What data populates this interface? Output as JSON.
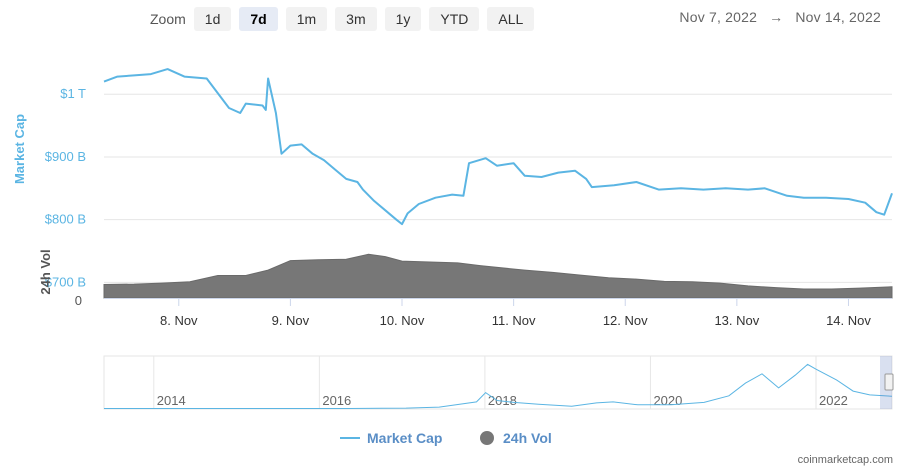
{
  "zoom": {
    "label": "Zoom",
    "buttons": [
      "1d",
      "7d",
      "1m",
      "3m",
      "1y",
      "YTD",
      "ALL"
    ],
    "active": "7d"
  },
  "date_range": {
    "from": "Nov 7, 2022",
    "arrow": "→",
    "to": "Nov 14, 2022"
  },
  "credit": "coinmarketcap.com",
  "colors": {
    "market_cap": "#5bb5e3",
    "volume": "#777777"
  },
  "chart_data": {
    "type": "line",
    "ylabel": "Market Cap",
    "y_ticks": [
      "$700 B",
      "$800 B",
      "$900 B",
      "$1 T"
    ],
    "y_tick_values": [
      700,
      800,
      900,
      1000
    ],
    "ylim": [
      672,
      1080
    ],
    "vol_label": "24h Vol",
    "vol_tick": "0",
    "x_ticks": [
      "8. Nov",
      "9. Nov",
      "10. Nov",
      "11. Nov",
      "12. Nov",
      "13. Nov",
      "14. Nov"
    ],
    "x_tick_days": [
      8,
      9,
      10,
      11,
      12,
      13,
      14
    ],
    "xlim_days": [
      7.33,
      14.39
    ],
    "series": [
      {
        "name": "Market Cap",
        "unit": "billion USD",
        "x_days": [
          7.33,
          7.45,
          7.6,
          7.75,
          7.9,
          8.05,
          8.25,
          8.45,
          8.55,
          8.6,
          8.75,
          8.78,
          8.8,
          8.87,
          8.92,
          9.0,
          9.1,
          9.2,
          9.3,
          9.4,
          9.5,
          9.6,
          9.65,
          9.75,
          9.85,
          9.95,
          10.0,
          10.05,
          10.15,
          10.3,
          10.45,
          10.55,
          10.6,
          10.75,
          10.85,
          11.0,
          11.1,
          11.25,
          11.4,
          11.55,
          11.65,
          11.7,
          11.9,
          12.1,
          12.3,
          12.5,
          12.7,
          12.9,
          13.1,
          13.25,
          13.45,
          13.6,
          13.8,
          14.0,
          14.15,
          14.25,
          14.32,
          14.39
        ],
        "values": [
          1020,
          1028,
          1030,
          1032,
          1040,
          1028,
          1025,
          978,
          970,
          985,
          982,
          975,
          1025,
          970,
          905,
          918,
          920,
          905,
          895,
          880,
          865,
          860,
          848,
          830,
          815,
          800,
          793,
          810,
          825,
          835,
          840,
          838,
          890,
          898,
          886,
          890,
          870,
          868,
          875,
          878,
          865,
          852,
          855,
          860,
          848,
          850,
          848,
          850,
          848,
          850,
          838,
          835,
          835,
          833,
          827,
          812,
          808,
          842
        ]
      },
      {
        "name": "24h Vol",
        "unit": "relative",
        "x_days": [
          7.33,
          7.6,
          7.85,
          8.1,
          8.35,
          8.6,
          8.8,
          9.0,
          9.25,
          9.5,
          9.7,
          9.85,
          10.0,
          10.25,
          10.5,
          10.7,
          10.9,
          11.1,
          11.35,
          11.6,
          11.85,
          12.1,
          12.35,
          12.6,
          12.85,
          13.1,
          13.35,
          13.6,
          13.85,
          14.1,
          14.39
        ],
        "values": [
          0.3,
          0.31,
          0.33,
          0.36,
          0.5,
          0.5,
          0.62,
          0.83,
          0.85,
          0.86,
          0.97,
          0.92,
          0.82,
          0.8,
          0.78,
          0.72,
          0.67,
          0.62,
          0.57,
          0.51,
          0.45,
          0.42,
          0.37,
          0.36,
          0.33,
          0.27,
          0.23,
          0.2,
          0.2,
          0.22,
          0.25
        ]
      }
    ],
    "navigator": {
      "x_ticks": [
        "2014",
        "2016",
        "2018",
        "2020",
        "2022"
      ],
      "years": [
        2013.35,
        2013.8,
        2014.5,
        2015.5,
        2016.3,
        2017.0,
        2017.4,
        2017.85,
        2017.96,
        2018.1,
        2018.3,
        2018.6,
        2019.0,
        2019.3,
        2019.5,
        2019.8,
        2020.2,
        2020.6,
        2020.9,
        2021.1,
        2021.3,
        2021.5,
        2021.7,
        2021.85,
        2021.95,
        2022.2,
        2022.4,
        2022.6,
        2022.87
      ],
      "values": [
        0.01,
        0.01,
        0.01,
        0.01,
        0.01,
        0.02,
        0.04,
        0.15,
        0.35,
        0.18,
        0.14,
        0.1,
        0.06,
        0.13,
        0.15,
        0.09,
        0.09,
        0.14,
        0.28,
        0.55,
        0.75,
        0.45,
        0.72,
        0.95,
        0.85,
        0.62,
        0.38,
        0.3,
        0.27
      ]
    },
    "legend": [
      "Market Cap",
      "24h Vol"
    ],
    "legend_position": "bottom-center"
  }
}
